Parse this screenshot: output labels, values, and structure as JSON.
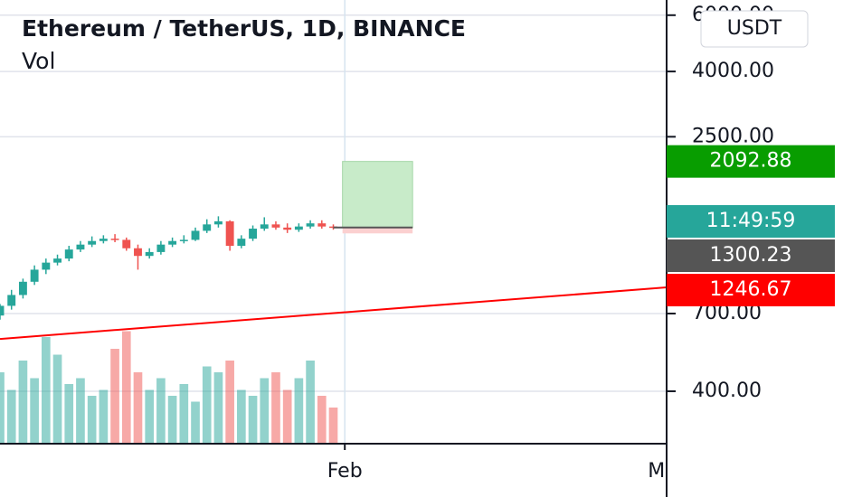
{
  "chart_data": {
    "type": "candlestick",
    "title": "Ethereum / TetherUS, 1D, BINANCE",
    "subtitle": "Vol",
    "currency_button": "USDT",
    "log_scale": true,
    "grid": true,
    "up_color": "#26a69a",
    "down_color": "#ef5350",
    "categories": [
      null,
      null,
      null,
      null,
      null,
      null,
      null,
      null,
      null,
      null,
      null,
      null,
      null,
      null,
      null,
      null,
      null,
      null,
      null,
      null,
      null,
      null,
      null,
      null,
      null,
      null,
      null,
      null,
      null,
      null
    ],
    "open": [
      690,
      740,
      800,
      880,
      960,
      1010,
      1040,
      1110,
      1150,
      1180,
      1200,
      1190,
      1120,
      1060,
      1090,
      1150,
      1180,
      1190,
      1270,
      1330,
      1360,
      1140,
      1200,
      1290,
      1330,
      1300,
      1280,
      1310,
      1340,
      1310
    ],
    "high": [
      750,
      830,
      900,
      990,
      1040,
      1070,
      1140,
      1180,
      1220,
      1230,
      1240,
      1210,
      1150,
      1120,
      1180,
      1210,
      1230,
      1300,
      1380,
      1410,
      1370,
      1230,
      1320,
      1400,
      1360,
      1340,
      1340,
      1370,
      1370,
      1330
    ],
    "low": [
      670,
      720,
      780,
      860,
      930,
      990,
      1020,
      1090,
      1130,
      1160,
      1170,
      1100,
      960,
      1040,
      1070,
      1130,
      1160,
      1180,
      1250,
      1300,
      1100,
      1120,
      1180,
      1270,
      1280,
      1250,
      1260,
      1290,
      1290,
      1280
    ],
    "close": [
      740,
      800,
      880,
      960,
      1010,
      1040,
      1110,
      1150,
      1180,
      1200,
      1190,
      1120,
      1060,
      1090,
      1150,
      1180,
      1190,
      1270,
      1330,
      1360,
      1140,
      1200,
      1290,
      1330,
      1300,
      1280,
      1310,
      1340,
      1310,
      1300
    ],
    "volume": [
      60,
      45,
      70,
      55,
      90,
      75,
      50,
      55,
      40,
      45,
      80,
      95,
      60,
      45,
      55,
      40,
      50,
      35,
      65,
      60,
      70,
      45,
      40,
      55,
      60,
      45,
      55,
      70,
      40,
      30
    ],
    "volume_lim": [
      0,
      100
    ],
    "xlim": [
      0,
      58
    ],
    "xticks": [
      {
        "value": 30,
        "label": "Feb"
      },
      {
        "value": 58,
        "label": "Mar"
      }
    ],
    "ylim": [
      276,
      6693
    ],
    "yticks": [
      {
        "value": 400,
        "label": "400.00"
      },
      {
        "value": 700,
        "label": "700.00"
      },
      {
        "value": 2500,
        "label": "2500.00"
      },
      {
        "value": 4000,
        "label": "4000.00"
      },
      {
        "value": 6000,
        "label": "6000.00"
      }
    ],
    "trendline": {
      "color": "#ff0000",
      "x": [
        0,
        58
      ],
      "y": [
        583,
        845
      ]
    },
    "position": {
      "x": [
        29.8,
        35.9
      ],
      "entry": 1300.23,
      "target": 2092.88,
      "stop": 1246.67
    },
    "countdown": "11:49:59"
  }
}
